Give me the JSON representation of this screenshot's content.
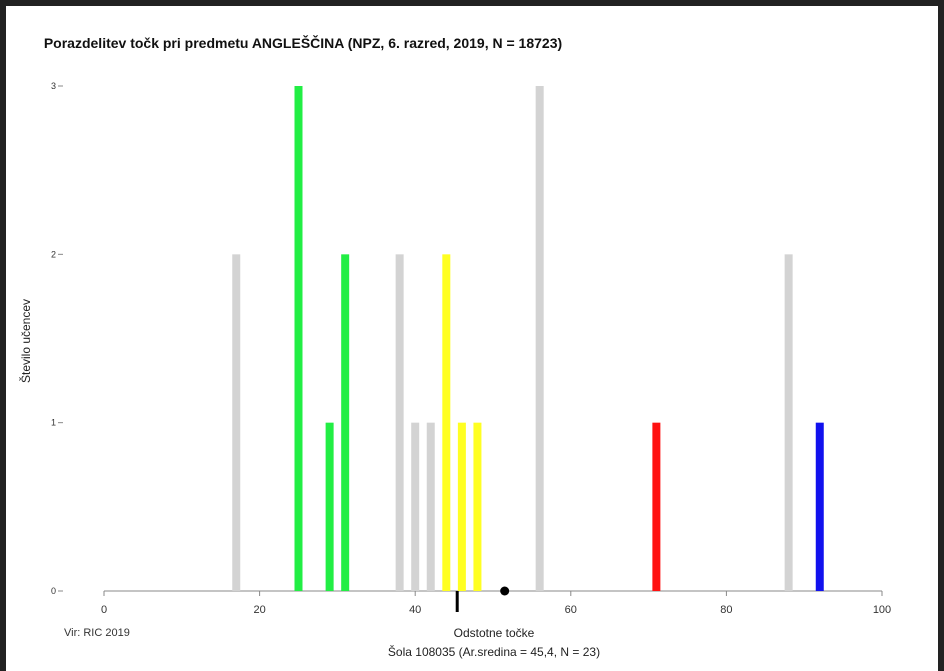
{
  "chart_data": {
    "type": "bar",
    "title": "Porazdelitev točk pri predmetu ANGLEŠČINA (NPZ, 6. razred, 2019, N = 18723)",
    "xlabel": "Odstotne točke",
    "ylabel": "Število učencev",
    "subtitle": "Šola 108035 (Ar.sredina = 45,4, N = 23)",
    "source": "Vir: RIC 2019",
    "xlim": [
      0,
      100
    ],
    "ylim": [
      0,
      3
    ],
    "xticks": [
      0,
      20,
      40,
      60,
      80,
      100
    ],
    "yticks": [
      0,
      1,
      2,
      3
    ],
    "grid": false,
    "legend": "none",
    "bars": [
      {
        "x": 17,
        "value": 2,
        "color": "#d3d3d3"
      },
      {
        "x": 25,
        "value": 3,
        "color": "#22ee44"
      },
      {
        "x": 29,
        "value": 1,
        "color": "#22ee44"
      },
      {
        "x": 31,
        "value": 2,
        "color": "#22ee44"
      },
      {
        "x": 38,
        "value": 2,
        "color": "#d3d3d3"
      },
      {
        "x": 40,
        "value": 1,
        "color": "#d3d3d3"
      },
      {
        "x": 42,
        "value": 1,
        "color": "#d3d3d3"
      },
      {
        "x": 44,
        "value": 2,
        "color": "#ffff22"
      },
      {
        "x": 46,
        "value": 1,
        "color": "#ffff22"
      },
      {
        "x": 48,
        "value": 1,
        "color": "#ffff22"
      },
      {
        "x": 56,
        "value": 3,
        "color": "#d3d3d3"
      },
      {
        "x": 71,
        "value": 1,
        "color": "#ff1111"
      },
      {
        "x": 88,
        "value": 2,
        "color": "#d3d3d3"
      },
      {
        "x": 92,
        "value": 1,
        "color": "#1111ee"
      }
    ],
    "mean_marker_x": 45.4,
    "dot_marker_x": 51.5,
    "colors": {
      "axis": "#888888",
      "mean": "#000000"
    }
  }
}
